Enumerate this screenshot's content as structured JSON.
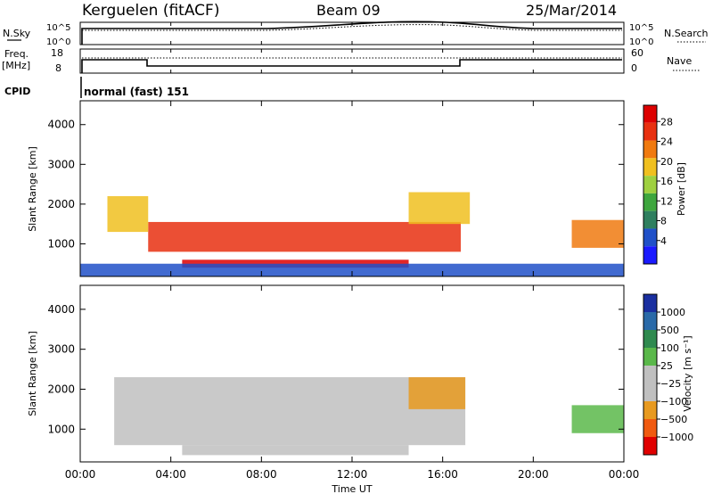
{
  "header": {
    "station": "Kerguelen (fitACF)",
    "beam": "Beam 09",
    "date": "25/Mar/2014"
  },
  "params": {
    "nsky_label": "N.Sky",
    "nsky_ticks": [
      "10^5",
      "10^0"
    ],
    "nsearch_label": "N.Search",
    "nsearch_ticks": [
      "10^5",
      "10^0"
    ],
    "freq_label": "Freq.",
    "freq_unit": "[MHz]",
    "freq_ticks": [
      "18",
      "8"
    ],
    "nave_label": "Nave",
    "nave_ticks": [
      "60",
      "0"
    ],
    "cpid_label": "CPID",
    "cpid_value": "normal (fast) 151"
  },
  "colors": {
    "power": [
      "#1a1aff",
      "#2050c8",
      "#2f7f5f",
      "#3ea63e",
      "#9fd040",
      "#f0c020",
      "#f07a10",
      "#e83010",
      "#dd0000"
    ],
    "velocity": [
      "#1a2fa0",
      "#2a6aa8",
      "#2f8a4f",
      "#5ab84a",
      "#c0c0c0",
      "#c0c0c0",
      "#e89a20",
      "#f05a10",
      "#e00000"
    ]
  },
  "chart_data": [
    {
      "type": "heatmap",
      "quantity": "Power",
      "xlabel": "",
      "ylabel": "Slant Range [km]",
      "ylim": [
        180,
        4600
      ],
      "yticks": [
        "1000",
        "2000",
        "3000",
        "4000"
      ],
      "xlim": [
        "00:00",
        "24:00"
      ],
      "colorbar": {
        "label": "Power [dB]",
        "ticks": [
          "4",
          "8",
          "12",
          "16",
          "20",
          "24",
          "28"
        ]
      },
      "regions": [
        {
          "t_start": 3.0,
          "t_end": 16.8,
          "r_min": 800,
          "r_max": 1550,
          "value_db": 26
        },
        {
          "t_start": 4.5,
          "t_end": 14.5,
          "r_min": 400,
          "r_max": 600,
          "value_db": 27
        },
        {
          "t_start": 1.2,
          "t_end": 3.0,
          "r_min": 1300,
          "r_max": 2200,
          "value_db": 18
        },
        {
          "t_start": 14.5,
          "t_end": 17.2,
          "r_min": 1500,
          "r_max": 2300,
          "value_db": 20
        },
        {
          "t_start": 21.7,
          "t_end": 24.0,
          "r_min": 900,
          "r_max": 1600,
          "value_db": 22
        },
        {
          "t_start": 0.0,
          "t_end": 24.0,
          "r_min": 180,
          "r_max": 500,
          "value_db": 6
        }
      ]
    },
    {
      "type": "heatmap",
      "quantity": "Velocity",
      "xlabel": "Time UT",
      "ylabel": "Slant Range [km]",
      "ylim": [
        180,
        4600
      ],
      "yticks": [
        "1000",
        "2000",
        "3000",
        "4000"
      ],
      "xlim": [
        "00:00",
        "24:00"
      ],
      "xticks": [
        "00:00",
        "04:00",
        "08:00",
        "12:00",
        "16:00",
        "20:00",
        "00:00"
      ],
      "colorbar": {
        "label": "Velocity [m s⁻¹]",
        "ticks": [
          "1000",
          "500",
          "100",
          "25",
          "−25",
          "−100",
          "−500",
          "−1000"
        ]
      },
      "regions": [
        {
          "t_start": 1.5,
          "t_end": 17.0,
          "r_min": 600,
          "r_max": 2300,
          "value_ms": 0
        },
        {
          "t_start": 4.5,
          "t_end": 14.5,
          "r_min": 350,
          "r_max": 600,
          "value_ms": 0
        },
        {
          "t_start": 14.5,
          "t_end": 17.0,
          "r_min": 1500,
          "r_max": 2300,
          "value_ms": -200
        },
        {
          "t_start": 21.7,
          "t_end": 24.0,
          "r_min": 900,
          "r_max": 1600,
          "value_ms": 50
        }
      ]
    }
  ]
}
